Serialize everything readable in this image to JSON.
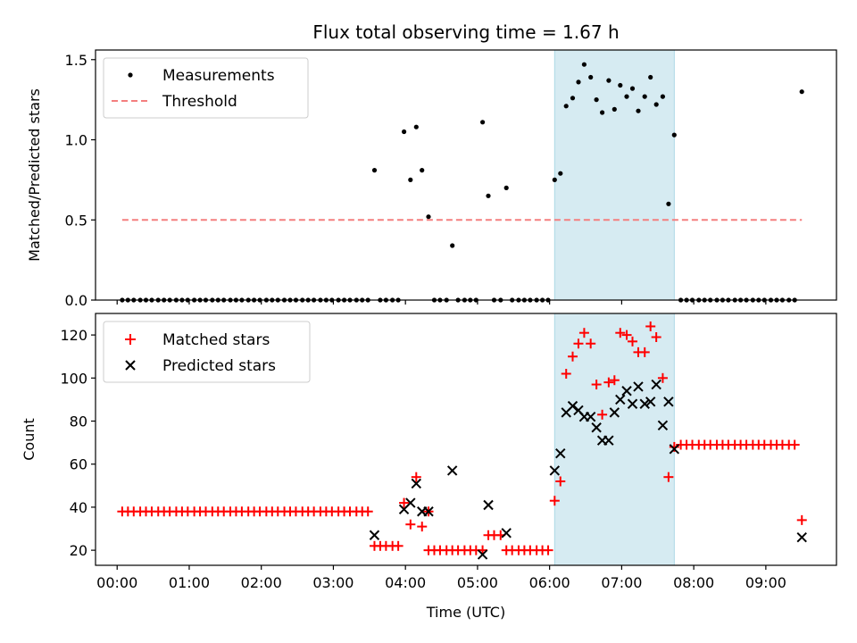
{
  "chart_data": {
    "title": "Flux total observing time = 1.67 h",
    "colors": {
      "measurement": "#000000",
      "threshold": "#f47f7f",
      "matched": "#ff0000",
      "predicted": "#000000",
      "highlight": "#add8e6"
    },
    "x_axis": {
      "label": "Time (UTC)",
      "unit": "hours",
      "range": [
        -0.3,
        9.98
      ],
      "ticks": [
        0,
        1,
        2,
        3,
        4,
        5,
        6,
        7,
        8,
        9
      ],
      "tick_labels": [
        "00:00",
        "01:00",
        "02:00",
        "03:00",
        "04:00",
        "05:00",
        "06:00",
        "07:00",
        "08:00",
        "09:00"
      ]
    },
    "highlight_span": {
      "start": 6.07,
      "end": 7.73
    },
    "top": {
      "type": "scatter",
      "ylabel": "Matched/Predicted stars",
      "ylim": [
        0,
        1.56
      ],
      "yticks": [
        0.0,
        0.5,
        1.0,
        1.5
      ],
      "ytick_labels": [
        "0.0",
        "0.5",
        "1.0",
        "1.5"
      ],
      "legend": [
        "Measurements",
        "Threshold"
      ],
      "legend_position": "upper-left",
      "threshold": {
        "name": "Threshold",
        "y": 0.5,
        "x_start": 0.07,
        "x_end": 9.5
      },
      "series": [
        {
          "name": "Measurements",
          "points": [
            [
              0.07,
              0
            ],
            [
              0.15,
              0
            ],
            [
              0.23,
              0
            ],
            [
              0.32,
              0
            ],
            [
              0.4,
              0
            ],
            [
              0.48,
              0
            ],
            [
              0.57,
              0
            ],
            [
              0.65,
              0
            ],
            [
              0.73,
              0
            ],
            [
              0.82,
              0
            ],
            [
              0.9,
              0
            ],
            [
              0.98,
              0
            ],
            [
              1.07,
              0
            ],
            [
              1.15,
              0
            ],
            [
              1.23,
              0
            ],
            [
              1.32,
              0
            ],
            [
              1.4,
              0
            ],
            [
              1.48,
              0
            ],
            [
              1.57,
              0
            ],
            [
              1.65,
              0
            ],
            [
              1.73,
              0
            ],
            [
              1.82,
              0
            ],
            [
              1.9,
              0
            ],
            [
              1.98,
              0
            ],
            [
              2.07,
              0
            ],
            [
              2.15,
              0
            ],
            [
              2.23,
              0
            ],
            [
              2.32,
              0
            ],
            [
              2.4,
              0
            ],
            [
              2.48,
              0
            ],
            [
              2.57,
              0
            ],
            [
              2.65,
              0
            ],
            [
              2.73,
              0
            ],
            [
              2.82,
              0
            ],
            [
              2.9,
              0
            ],
            [
              2.98,
              0
            ],
            [
              3.07,
              0
            ],
            [
              3.15,
              0
            ],
            [
              3.23,
              0
            ],
            [
              3.32,
              0
            ],
            [
              3.4,
              0
            ],
            [
              3.48,
              0
            ],
            [
              3.57,
              0.81
            ],
            [
              3.65,
              0
            ],
            [
              3.73,
              0
            ],
            [
              3.82,
              0
            ],
            [
              3.9,
              0
            ],
            [
              3.98,
              1.05
            ],
            [
              4.07,
              0.75
            ],
            [
              4.15,
              1.08
            ],
            [
              4.23,
              0.81
            ],
            [
              4.32,
              0.52
            ],
            [
              4.4,
              0
            ],
            [
              4.48,
              0
            ],
            [
              4.57,
              0
            ],
            [
              4.65,
              0.34
            ],
            [
              4.73,
              0
            ],
            [
              4.82,
              0
            ],
            [
              4.9,
              0
            ],
            [
              4.98,
              0
            ],
            [
              5.07,
              1.11
            ],
            [
              5.15,
              0.65
            ],
            [
              5.23,
              0
            ],
            [
              5.32,
              0
            ],
            [
              5.4,
              0.7
            ],
            [
              5.48,
              0
            ],
            [
              5.57,
              0
            ],
            [
              5.65,
              0
            ],
            [
              5.73,
              0
            ],
            [
              5.82,
              0
            ],
            [
              5.9,
              0
            ],
            [
              5.98,
              0
            ],
            [
              6.07,
              0.75
            ],
            [
              6.15,
              0.79
            ],
            [
              6.23,
              1.21
            ],
            [
              6.32,
              1.26
            ],
            [
              6.4,
              1.36
            ],
            [
              6.48,
              1.47
            ],
            [
              6.57,
              1.39
            ],
            [
              6.65,
              1.25
            ],
            [
              6.73,
              1.17
            ],
            [
              6.82,
              1.37
            ],
            [
              6.9,
              1.19
            ],
            [
              6.98,
              1.34
            ],
            [
              7.07,
              1.27
            ],
            [
              7.15,
              1.32
            ],
            [
              7.23,
              1.18
            ],
            [
              7.32,
              1.27
            ],
            [
              7.4,
              1.39
            ],
            [
              7.48,
              1.22
            ],
            [
              7.57,
              1.27
            ],
            [
              7.65,
              0.6
            ],
            [
              7.73,
              1.03
            ],
            [
              7.82,
              0
            ],
            [
              7.9,
              0
            ],
            [
              7.98,
              0
            ],
            [
              8.07,
              0
            ],
            [
              8.15,
              0
            ],
            [
              8.23,
              0
            ],
            [
              8.32,
              0
            ],
            [
              8.4,
              0
            ],
            [
              8.48,
              0
            ],
            [
              8.57,
              0
            ],
            [
              8.65,
              0
            ],
            [
              8.73,
              0
            ],
            [
              8.82,
              0
            ],
            [
              8.9,
              0
            ],
            [
              8.98,
              0
            ],
            [
              9.07,
              0
            ],
            [
              9.15,
              0
            ],
            [
              9.23,
              0
            ],
            [
              9.32,
              0
            ],
            [
              9.4,
              0
            ],
            [
              9.5,
              1.3
            ]
          ]
        }
      ]
    },
    "bottom": {
      "type": "scatter",
      "ylabel": "Count",
      "ylim": [
        13,
        130
      ],
      "yticks": [
        20,
        40,
        60,
        80,
        100,
        120
      ],
      "ytick_labels": [
        "20",
        "40",
        "60",
        "80",
        "100",
        "120"
      ],
      "legend": [
        "Matched stars",
        "Predicted stars"
      ],
      "legend_position": "upper-left",
      "series": [
        {
          "name": "Matched stars",
          "marker": "plus",
          "points": [
            [
              0.07,
              38
            ],
            [
              0.15,
              38
            ],
            [
              0.23,
              38
            ],
            [
              0.32,
              38
            ],
            [
              0.4,
              38
            ],
            [
              0.48,
              38
            ],
            [
              0.57,
              38
            ],
            [
              0.65,
              38
            ],
            [
              0.73,
              38
            ],
            [
              0.82,
              38
            ],
            [
              0.9,
              38
            ],
            [
              0.98,
              38
            ],
            [
              1.07,
              38
            ],
            [
              1.15,
              38
            ],
            [
              1.23,
              38
            ],
            [
              1.32,
              38
            ],
            [
              1.4,
              38
            ],
            [
              1.48,
              38
            ],
            [
              1.57,
              38
            ],
            [
              1.65,
              38
            ],
            [
              1.73,
              38
            ],
            [
              1.82,
              38
            ],
            [
              1.9,
              38
            ],
            [
              1.98,
              38
            ],
            [
              2.07,
              38
            ],
            [
              2.15,
              38
            ],
            [
              2.23,
              38
            ],
            [
              2.32,
              38
            ],
            [
              2.4,
              38
            ],
            [
              2.48,
              38
            ],
            [
              2.57,
              38
            ],
            [
              2.65,
              38
            ],
            [
              2.73,
              38
            ],
            [
              2.82,
              38
            ],
            [
              2.9,
              38
            ],
            [
              2.98,
              38
            ],
            [
              3.07,
              38
            ],
            [
              3.15,
              38
            ],
            [
              3.23,
              38
            ],
            [
              3.32,
              38
            ],
            [
              3.4,
              38
            ],
            [
              3.48,
              38
            ],
            [
              3.57,
              22
            ],
            [
              3.65,
              22
            ],
            [
              3.73,
              22
            ],
            [
              3.82,
              22
            ],
            [
              3.9,
              22
            ],
            [
              3.98,
              42
            ],
            [
              4.07,
              32
            ],
            [
              4.15,
              54
            ],
            [
              4.23,
              31
            ],
            [
              4.32,
              38
            ],
            [
              4.32,
              20
            ],
            [
              4.4,
              20
            ],
            [
              4.48,
              20
            ],
            [
              4.57,
              20
            ],
            [
              4.65,
              20
            ],
            [
              4.73,
              20
            ],
            [
              4.82,
              20
            ],
            [
              4.9,
              20
            ],
            [
              4.98,
              20
            ],
            [
              5.07,
              20
            ],
            [
              5.15,
              27
            ],
            [
              5.23,
              27
            ],
            [
              5.32,
              27
            ],
            [
              5.4,
              20
            ],
            [
              5.48,
              20
            ],
            [
              5.57,
              20
            ],
            [
              5.65,
              20
            ],
            [
              5.73,
              20
            ],
            [
              5.82,
              20
            ],
            [
              5.9,
              20
            ],
            [
              5.98,
              20
            ],
            [
              6.07,
              43
            ],
            [
              6.15,
              52
            ],
            [
              6.23,
              102
            ],
            [
              6.32,
              110
            ],
            [
              6.4,
              116
            ],
            [
              6.48,
              121
            ],
            [
              6.57,
              116
            ],
            [
              6.65,
              97
            ],
            [
              6.73,
              83
            ],
            [
              6.82,
              98
            ],
            [
              6.9,
              99
            ],
            [
              6.98,
              121
            ],
            [
              7.07,
              120
            ],
            [
              7.15,
              117
            ],
            [
              7.23,
              112
            ],
            [
              7.32,
              112
            ],
            [
              7.4,
              124
            ],
            [
              7.48,
              119
            ],
            [
              7.57,
              100
            ],
            [
              7.65,
              54
            ],
            [
              7.73,
              68
            ],
            [
              7.82,
              69
            ],
            [
              7.9,
              69
            ],
            [
              7.98,
              69
            ],
            [
              8.07,
              69
            ],
            [
              8.15,
              69
            ],
            [
              8.23,
              69
            ],
            [
              8.32,
              69
            ],
            [
              8.4,
              69
            ],
            [
              8.48,
              69
            ],
            [
              8.57,
              69
            ],
            [
              8.65,
              69
            ],
            [
              8.73,
              69
            ],
            [
              8.82,
              69
            ],
            [
              8.9,
              69
            ],
            [
              8.98,
              69
            ],
            [
              9.07,
              69
            ],
            [
              9.15,
              69
            ],
            [
              9.23,
              69
            ],
            [
              9.32,
              69
            ],
            [
              9.4,
              69
            ],
            [
              9.5,
              34
            ]
          ]
        },
        {
          "name": "Predicted stars",
          "marker": "cross",
          "points": [
            [
              3.57,
              27
            ],
            [
              3.98,
              39
            ],
            [
              4.07,
              42
            ],
            [
              4.15,
              51
            ],
            [
              4.23,
              38
            ],
            [
              4.32,
              38
            ],
            [
              4.65,
              57
            ],
            [
              5.07,
              18
            ],
            [
              5.15,
              41
            ],
            [
              5.4,
              28
            ],
            [
              6.07,
              57
            ],
            [
              6.15,
              65
            ],
            [
              6.23,
              84
            ],
            [
              6.32,
              87
            ],
            [
              6.4,
              85
            ],
            [
              6.48,
              82
            ],
            [
              6.57,
              82
            ],
            [
              6.65,
              77
            ],
            [
              6.73,
              71
            ],
            [
              6.82,
              71
            ],
            [
              6.9,
              84
            ],
            [
              6.98,
              90
            ],
            [
              7.07,
              94
            ],
            [
              7.15,
              88
            ],
            [
              7.23,
              96
            ],
            [
              7.32,
              88
            ],
            [
              7.4,
              89
            ],
            [
              7.48,
              97
            ],
            [
              7.57,
              78
            ],
            [
              7.65,
              89
            ],
            [
              7.73,
              67
            ],
            [
              9.5,
              26
            ]
          ]
        }
      ]
    }
  }
}
